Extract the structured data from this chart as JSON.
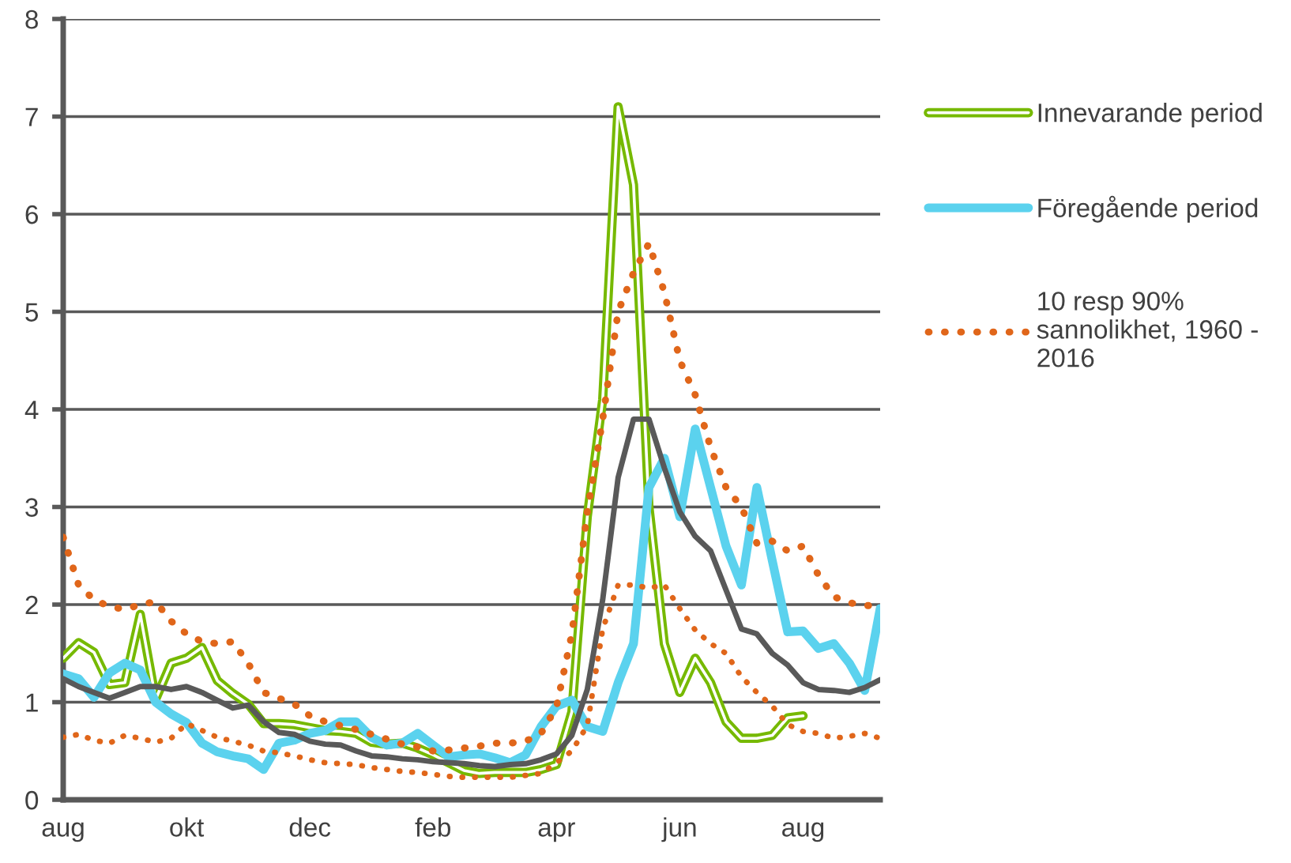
{
  "chart_data": {
    "type": "line",
    "categories": [
      "aug",
      null,
      null,
      null,
      null,
      null,
      null,
      null,
      "okt",
      null,
      null,
      null,
      null,
      null,
      null,
      null,
      "dec",
      null,
      null,
      null,
      null,
      null,
      null,
      null,
      "feb",
      null,
      null,
      null,
      null,
      null,
      null,
      null,
      "apr",
      null,
      null,
      null,
      null,
      null,
      null,
      null,
      "jun",
      null,
      null,
      null,
      null,
      null,
      null,
      null,
      "aug",
      null,
      null,
      null,
      null,
      null
    ],
    "ylim": [
      0,
      8
    ],
    "yticks": [
      0,
      1,
      2,
      3,
      4,
      5,
      6,
      7,
      8
    ],
    "grid": "y",
    "legend": "right",
    "marker": "none",
    "series": [
      {
        "name": "Innevarande period",
        "color": "#76b900",
        "line_style": "solid",
        "values": [
          1.45,
          1.61,
          1.51,
          1.18,
          1.2,
          1.9,
          1.03,
          1.4,
          1.45,
          1.56,
          1.22,
          1.09,
          0.98,
          0.78,
          0.78,
          0.77,
          0.74,
          0.71,
          0.7,
          0.68,
          0.59,
          0.57,
          0.58,
          0.53,
          0.46,
          0.38,
          0.3,
          0.27,
          0.28,
          0.28,
          0.28,
          0.31,
          0.36,
          0.9,
          2.9,
          4.1,
          7.1,
          6.3,
          3.0,
          1.6,
          1.1,
          1.45,
          1.2,
          0.8,
          0.63,
          0.63,
          0.66,
          0.84,
          0.86,
          null,
          null,
          null,
          null,
          null
        ]
      },
      {
        "name": "Föregående period",
        "color": "#5bd2ee",
        "line_style": "solid",
        "values": [
          1.29,
          1.24,
          1.05,
          1.3,
          1.4,
          1.33,
          1.0,
          0.88,
          0.79,
          0.58,
          0.49,
          0.45,
          0.42,
          0.31,
          0.58,
          0.61,
          0.68,
          0.71,
          0.8,
          0.8,
          0.64,
          0.56,
          0.58,
          0.68,
          0.56,
          0.44,
          0.46,
          0.47,
          0.43,
          0.38,
          0.46,
          0.75,
          0.96,
          1.02,
          0.75,
          0.7,
          1.2,
          1.6,
          3.2,
          3.5,
          2.9,
          3.8,
          3.2,
          2.6,
          2.2,
          3.2,
          2.45,
          1.72,
          1.73,
          1.55,
          1.6,
          1.4,
          1.12,
          1.96
        ]
      },
      {
        "color": "#595959",
        "line_style": "solid",
        "values": [
          1.24,
          1.16,
          1.1,
          1.04,
          1.1,
          1.16,
          1.16,
          1.13,
          1.16,
          1.1,
          1.02,
          0.94,
          0.97,
          0.8,
          0.69,
          0.67,
          0.6,
          0.57,
          0.56,
          0.5,
          0.45,
          0.44,
          0.42,
          0.41,
          0.39,
          0.38,
          0.37,
          0.35,
          0.34,
          0.36,
          0.37,
          0.41,
          0.47,
          0.66,
          1.13,
          2.05,
          3.3,
          3.9,
          3.9,
          3.4,
          2.95,
          2.7,
          2.55,
          2.15,
          1.75,
          1.7,
          1.5,
          1.38,
          1.2,
          1.13,
          1.12,
          1.1,
          1.15,
          1.23
        ]
      },
      {
        "name": "10 resp 90%\nsannolikhet, 1960 -\n2016",
        "color": "#e0661a",
        "line_style": "dotted",
        "values": [
          2.69,
          2.2,
          2.05,
          1.98,
          1.95,
          2.0,
          2.03,
          1.83,
          1.7,
          1.62,
          1.6,
          1.62,
          1.4,
          1.1,
          1.04,
          0.98,
          0.86,
          0.8,
          0.76,
          0.72,
          0.67,
          0.62,
          0.57,
          0.54,
          0.5,
          0.51,
          0.53,
          0.55,
          0.58,
          0.58,
          0.6,
          0.68,
          0.95,
          1.7,
          2.95,
          3.9,
          5.0,
          5.4,
          5.7,
          5.2,
          4.5,
          4.15,
          3.61,
          3.2,
          3.0,
          2.63,
          2.65,
          2.55,
          2.6,
          2.3,
          2.08,
          2.02,
          1.99,
          1.99
        ]
      },
      {
        "color": "#e0661a",
        "line_style": "dotted",
        "values": [
          0.64,
          0.67,
          0.61,
          0.58,
          0.66,
          0.63,
          0.59,
          0.63,
          0.78,
          0.71,
          0.64,
          0.6,
          0.56,
          0.5,
          0.48,
          0.45,
          0.41,
          0.38,
          0.37,
          0.36,
          0.33,
          0.31,
          0.29,
          0.28,
          0.26,
          0.24,
          0.23,
          0.23,
          0.23,
          0.23,
          0.25,
          0.27,
          0.38,
          0.5,
          0.76,
          1.75,
          2.2,
          2.2,
          2.17,
          2.2,
          1.96,
          1.74,
          1.6,
          1.5,
          1.26,
          1.1,
          0.96,
          0.77,
          0.7,
          0.68,
          0.63,
          0.65,
          0.68,
          0.63
        ]
      }
    ]
  }
}
